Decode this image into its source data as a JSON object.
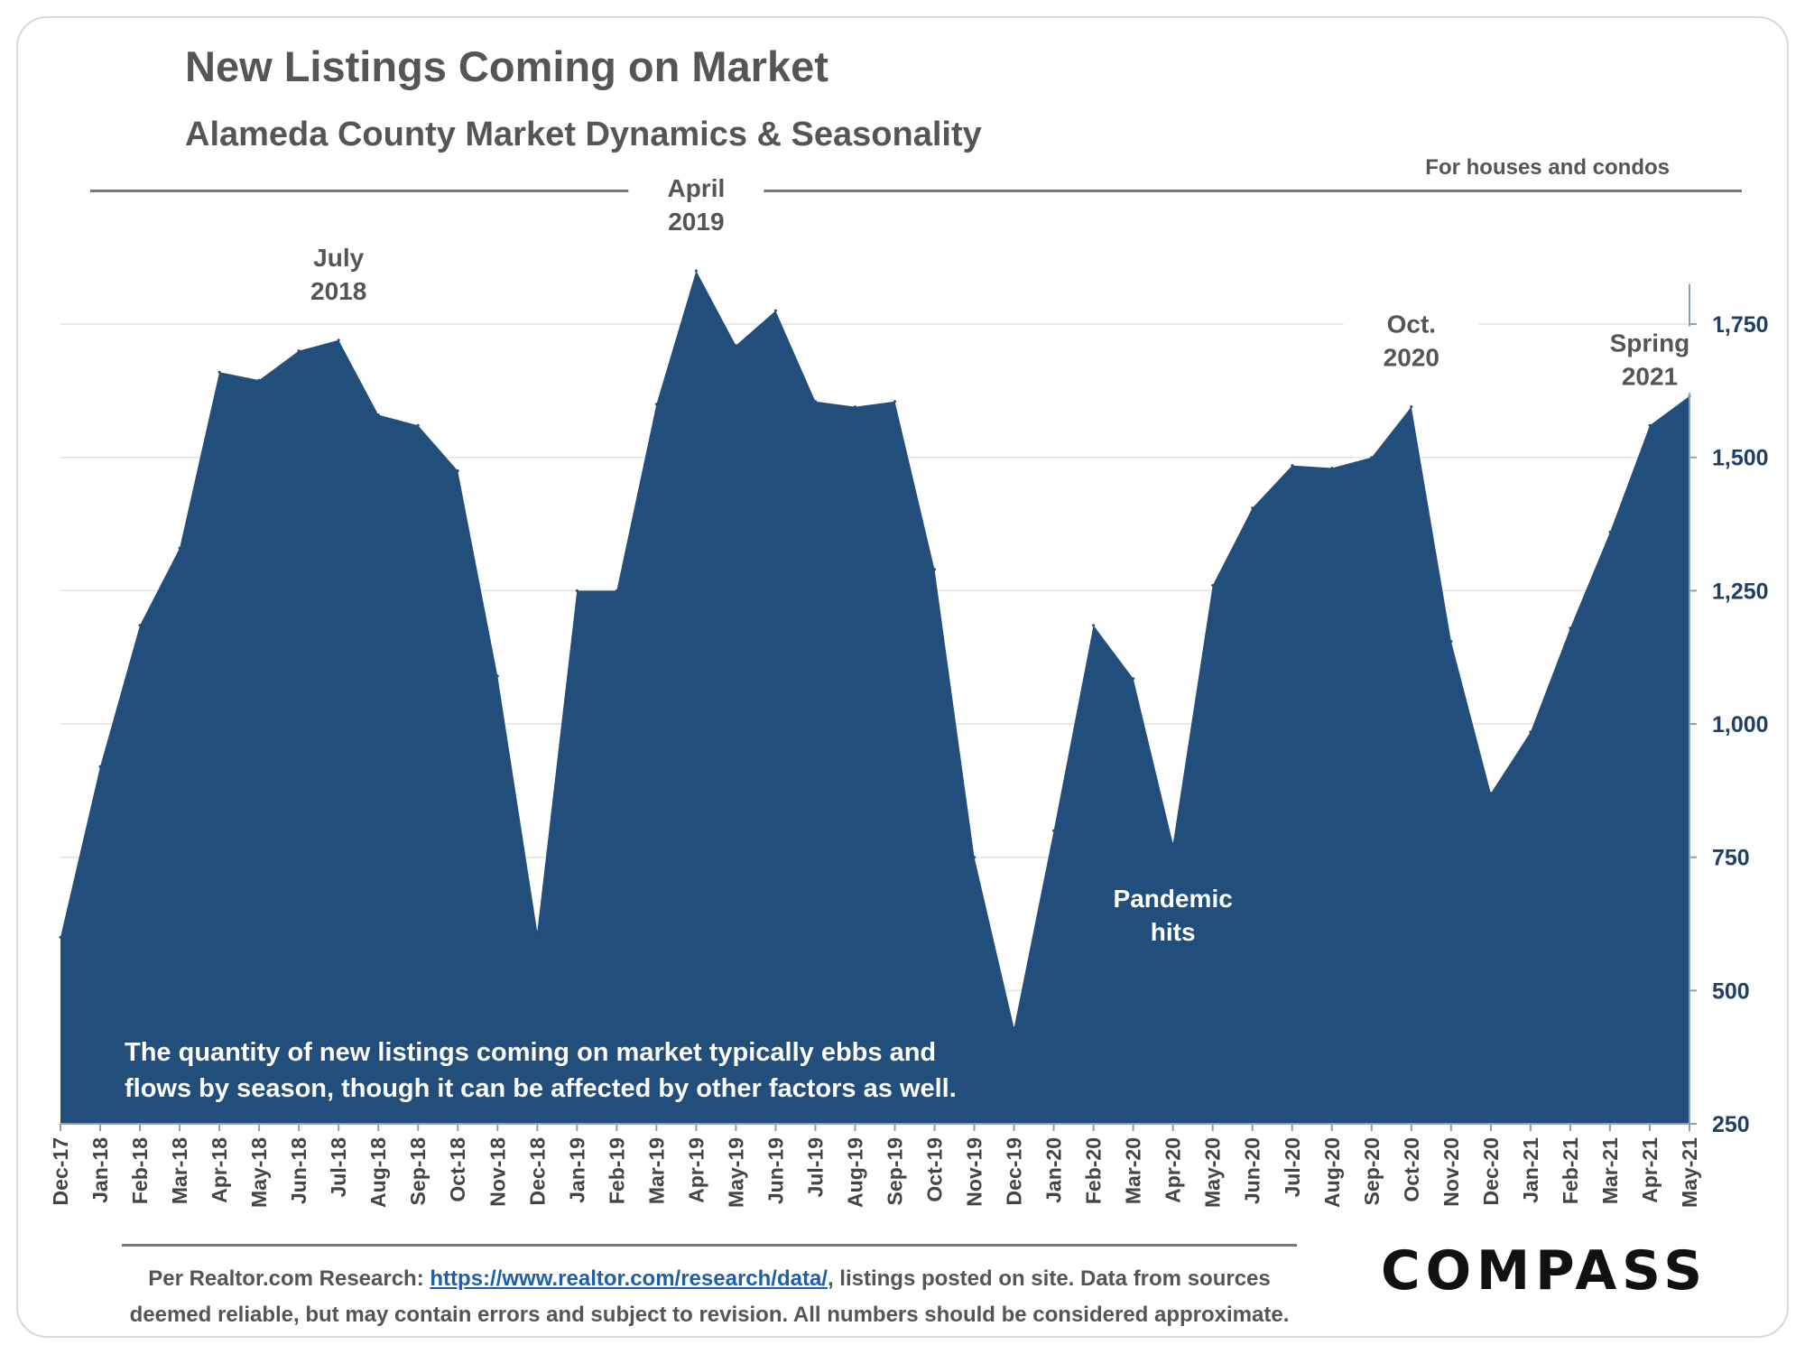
{
  "header": {
    "title": "New Listings Coming on Market",
    "subtitle": "Alameda County Market Dynamics & Seasonality",
    "note": "For houses and condos"
  },
  "chart_data": {
    "type": "area",
    "x": [
      "Dec-17",
      "Jan-18",
      "Feb-18",
      "Mar-18",
      "Apr-18",
      "May-18",
      "Jun-18",
      "Jul-18",
      "Aug-18",
      "Sep-18",
      "Oct-18",
      "Nov-18",
      "Dec-18",
      "Jan-19",
      "Feb-19",
      "Mar-19",
      "Apr-19",
      "May-19",
      "Jun-19",
      "Jul-19",
      "Aug-19",
      "Sep-19",
      "Oct-19",
      "Nov-19",
      "Dec-19",
      "Jan-20",
      "Feb-20",
      "Mar-20",
      "Apr-20",
      "May-20",
      "Jun-20",
      "Jul-20",
      "Aug-20",
      "Sep-20",
      "Oct-20",
      "Nov-20",
      "Dec-20",
      "Jan-21",
      "Feb-21",
      "Mar-21",
      "Apr-21",
      "May-21"
    ],
    "series": [
      {
        "values": [
          600,
          920,
          1185,
          1330,
          1660,
          1645,
          1700,
          1720,
          1580,
          1560,
          1475,
          1090,
          610,
          1250,
          1250,
          1600,
          1850,
          1710,
          1775,
          1605,
          1595,
          1605,
          1290,
          750,
          430,
          800,
          1185,
          1085,
          775,
          1260,
          1405,
          1485,
          1480,
          1500,
          1595,
          1155,
          870,
          985,
          1180,
          1360,
          1560,
          1615
        ]
      }
    ],
    "ylim": [
      250,
      1850
    ],
    "yticks": [
      "250",
      "500",
      "750",
      "1,000",
      "1,250",
      "1,500",
      "1,750"
    ],
    "ytick_values": [
      250,
      500,
      750,
      1000,
      1250,
      1500,
      1750
    ],
    "y_axis_side": "right",
    "grid": true,
    "annotations": [
      {
        "lines": [
          "July",
          "2018"
        ],
        "x": "Jul-18"
      },
      {
        "lines": [
          "April",
          "2019"
        ],
        "x": "Apr-19"
      },
      {
        "lines": [
          "Oct.",
          "2020"
        ],
        "x": "Oct-20"
      },
      {
        "lines": [
          "Spring",
          "2021"
        ],
        "x": "Apr-21"
      },
      {
        "lines": [
          "Pandemic",
          "hits"
        ],
        "x": "Apr-20"
      }
    ],
    "callout_lines": [
      "The quantity of new listings coming on market typically ebbs and",
      "flows by season, though it can be affected by other factors as well."
    ],
    "fill_color": "#214e7b",
    "axis_text_color": "#1f3f66"
  },
  "footer": {
    "source_prefix": "Per Realtor.com Research:",
    "source_link": "https://www.realtor.com/research/data/",
    "source_suffix": ", listings posted on site. Data from sources",
    "line2": "deemed reliable, but may contain errors and subject to revision. All numbers should be considered approximate."
  },
  "brand": {
    "logo_text": "COMPASS"
  }
}
